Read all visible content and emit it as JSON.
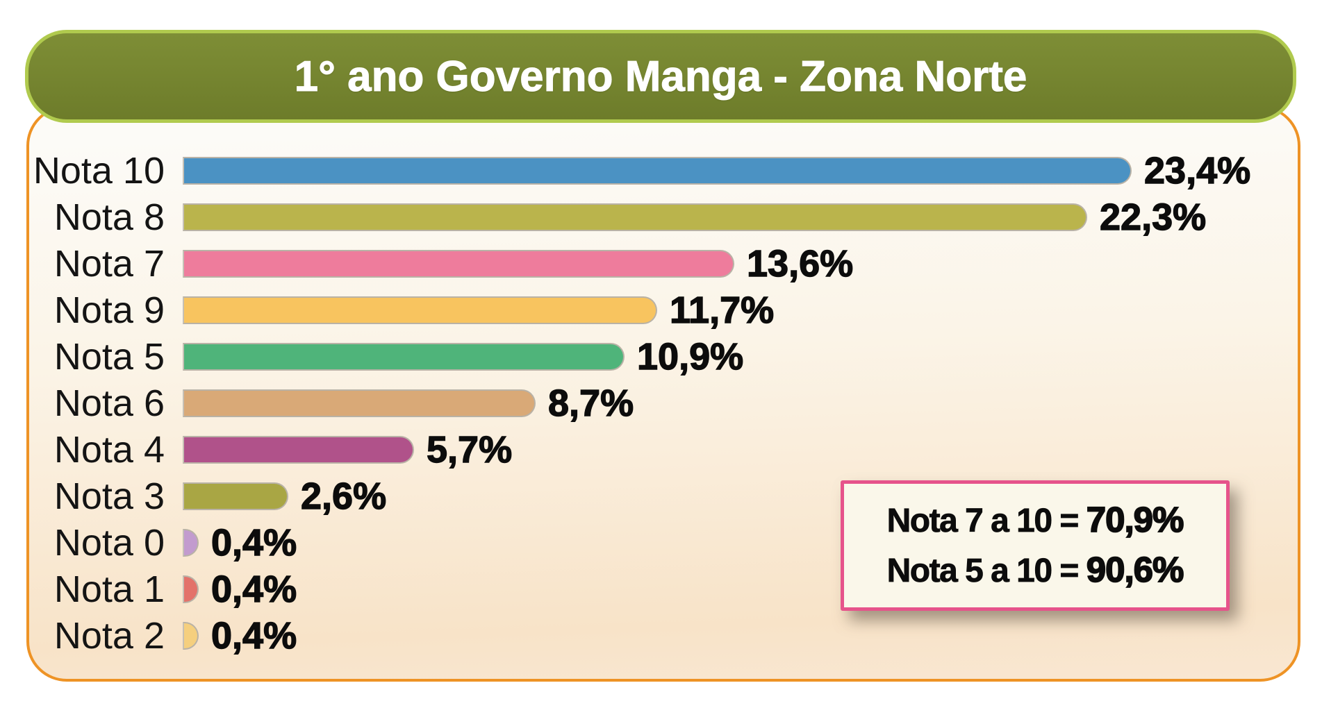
{
  "title": "1° ano Governo Manga - Zona Norte",
  "colors": {
    "card_border": "#ee9325",
    "card_bg_top": "#fcfbf7",
    "card_bg_bottom": "#f8e3c8",
    "title_fill": "#75852f",
    "title_border": "#b0ca4e",
    "title_text": "#ffffff",
    "bar_outline": "#b9b2a6",
    "note_border": "#e6538b",
    "note_bg": "#faf7ea",
    "text": "#0c0c0c"
  },
  "chart_data": {
    "type": "bar",
    "orientation": "horizontal",
    "title": "1° ano Governo Manga - Zona Norte",
    "xlabel": "",
    "ylabel": "",
    "xlim": [
      0,
      24.5
    ],
    "grid": false,
    "legend": false,
    "categories": [
      "Nota 10",
      "Nota 8",
      "Nota 7",
      "Nota 9",
      "Nota 5",
      "Nota 6",
      "Nota 4",
      "Nota 3",
      "Nota 0",
      "Nota 1",
      "Nota 2"
    ],
    "values": [
      23.4,
      22.3,
      13.6,
      11.7,
      10.9,
      8.7,
      5.7,
      2.6,
      0.4,
      0.4,
      0.4
    ],
    "value_labels": [
      "23,4%",
      "22,3%",
      "13,6%",
      "11,7%",
      "10,9%",
      "8,7%",
      "5,7%",
      "2,6%",
      "0,4%",
      "0,4%",
      "0,4%"
    ],
    "bar_colors": [
      "#4b92c3",
      "#bab44c",
      "#ee7c9c",
      "#f8c45f",
      "#4fb47a",
      "#d9a977",
      "#b0528a",
      "#a9a644",
      "#c29bce",
      "#e3726a",
      "#f5cf7e"
    ],
    "annotation": {
      "lines": [
        {
          "label": "Nota 7 a 10 = ",
          "value": "70,9%"
        },
        {
          "label": "Nota 5 a 10 = ",
          "value": "90,6%"
        }
      ]
    }
  }
}
